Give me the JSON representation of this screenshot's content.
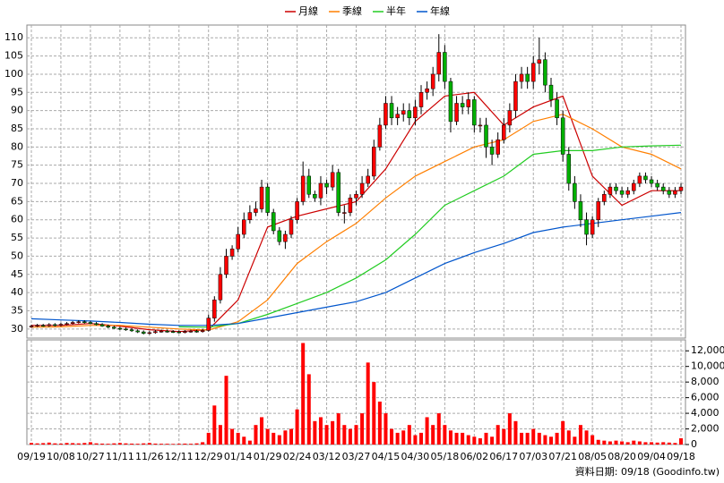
{
  "chart_data": {
    "type": "candlestick",
    "footer": "資料日期: 09/18  (Goodinfo.tw)",
    "categories": [
      "09/19",
      null,
      null,
      null,
      null,
      "10/08",
      null,
      null,
      null,
      null,
      "10/27",
      null,
      null,
      null,
      null,
      "11/11",
      null,
      null,
      null,
      null,
      "11/26",
      null,
      null,
      null,
      null,
      "12/11",
      null,
      null,
      null,
      null,
      "12/29",
      null,
      null,
      null,
      null,
      "01/14",
      null,
      null,
      null,
      null,
      "01/29",
      null,
      null,
      null,
      null,
      "02/24",
      null,
      null,
      null,
      null,
      "03/12",
      null,
      null,
      null,
      null,
      "03/27",
      null,
      null,
      null,
      null,
      "04/15",
      null,
      null,
      null,
      null,
      "04/30",
      null,
      null,
      null,
      null,
      "05/18",
      null,
      null,
      null,
      null,
      "06/02",
      null,
      null,
      null,
      null,
      "06/17",
      null,
      null,
      null,
      null,
      "07/03",
      null,
      null,
      null,
      null,
      "07/21",
      null,
      null,
      null,
      null,
      "08/05",
      null,
      null,
      null,
      null,
      "08/20",
      null,
      null,
      null,
      null,
      "09/04",
      null,
      null,
      null,
      null,
      "09/18"
    ],
    "candles": {
      "up_color": "#ff0000",
      "down_color": "#00b000",
      "open": [
        30.6,
        30.8,
        31,
        30.9,
        31.2,
        31,
        31.3,
        31.5,
        31.8,
        32,
        31.8,
        31.5,
        31.2,
        30.8,
        30.5,
        30.2,
        30,
        29.8,
        29.5,
        29.2,
        28.8,
        29,
        29.3,
        29.4,
        29.3,
        29.2,
        29.1,
        29.3,
        29.4,
        29.3,
        29.6,
        33,
        38,
        45,
        50,
        52,
        56,
        60,
        62,
        63,
        69,
        62,
        57,
        54,
        56,
        60,
        65,
        72,
        67,
        66,
        70,
        69,
        73,
        62,
        62,
        66,
        67,
        70,
        72,
        80,
        86,
        92,
        88,
        89,
        90,
        88,
        91,
        95,
        96,
        100,
        106,
        98,
        87,
        92,
        91,
        93,
        86,
        86,
        80,
        78,
        82,
        86,
        90,
        98,
        100,
        98,
        103,
        104,
        97,
        93,
        88,
        78,
        70,
        65,
        60,
        56,
        60,
        65,
        67,
        69,
        68,
        67,
        68,
        70,
        72,
        71,
        70,
        69,
        68,
        67,
        68
      ],
      "high": [
        31.2,
        31.4,
        31.4,
        31.6,
        31.6,
        31.7,
        31.9,
        32.2,
        32.4,
        32.4,
        32.2,
        31.9,
        31.6,
        31.2,
        30.9,
        30.6,
        30.4,
        30.2,
        29.9,
        29.6,
        29.4,
        29.7,
        29.8,
        29.8,
        29.7,
        29.6,
        29.7,
        29.8,
        29.8,
        30,
        34,
        39,
        47,
        52,
        53,
        58,
        62,
        64,
        65,
        71,
        70,
        63,
        58,
        57,
        61,
        66,
        76,
        74,
        68,
        72,
        71,
        75,
        74,
        64,
        67,
        68,
        72,
        74,
        82,
        88,
        94,
        94,
        91,
        92,
        92,
        93,
        97,
        98,
        102,
        111,
        108,
        99,
        94,
        94,
        95,
        94,
        88,
        88,
        82,
        84,
        88,
        92,
        100,
        102,
        102,
        105,
        110,
        106,
        99,
        95,
        90,
        80,
        72,
        67,
        62,
        61,
        66,
        68,
        70,
        70,
        69,
        69,
        71,
        73,
        73,
        72,
        71,
        70,
        69,
        69,
        70
      ],
      "low": [
        30.3,
        30.5,
        30.6,
        30.6,
        30.7,
        30.7,
        31,
        31.2,
        31.5,
        31.5,
        31.3,
        31,
        30.6,
        30.2,
        30,
        29.7,
        29.5,
        29.2,
        28.9,
        28.5,
        28.5,
        28.7,
        29,
        29,
        28.9,
        28.8,
        28.8,
        29,
        29,
        29,
        29.3,
        32,
        37,
        44,
        49,
        51,
        55,
        59,
        61,
        62,
        61,
        56,
        53,
        52,
        55,
        59,
        64,
        66,
        65,
        64,
        67,
        68,
        61,
        59,
        61,
        64,
        66,
        69,
        71,
        79,
        85,
        86,
        86,
        87,
        86,
        86,
        89,
        93,
        94,
        98,
        96,
        84,
        86,
        89,
        89,
        84,
        84,
        77,
        75,
        77,
        81,
        84,
        88,
        96,
        96,
        96,
        100,
        95,
        91,
        86,
        76,
        68,
        63,
        58,
        53,
        55,
        58,
        64,
        66,
        67,
        66,
        66,
        67,
        69,
        70,
        69,
        68,
        67,
        66,
        66,
        67
      ],
      "close": [
        30.8,
        31,
        30.9,
        31.2,
        31,
        31.3,
        31.5,
        31.8,
        32,
        31.8,
        31.5,
        31.2,
        30.8,
        30.5,
        30.2,
        30,
        29.8,
        29.5,
        29.2,
        28.8,
        29,
        29.3,
        29.4,
        29.3,
        29.2,
        29.1,
        29.3,
        29.4,
        29.3,
        29.6,
        33,
        38,
        45,
        50,
        52,
        56,
        60,
        62,
        63,
        69,
        62,
        57,
        54,
        56,
        60,
        65,
        72,
        67,
        66,
        70,
        69,
        73,
        62,
        62,
        66,
        67,
        70,
        72,
        80,
        86,
        92,
        88,
        89,
        90,
        88,
        91,
        95,
        96,
        100,
        106,
        98,
        87,
        92,
        91,
        93,
        86,
        86,
        80,
        78,
        82,
        86,
        90,
        98,
        100,
        98,
        103,
        104,
        97,
        93,
        88,
        78,
        70,
        65,
        60,
        56,
        60,
        65,
        67,
        69,
        68,
        67,
        68,
        70,
        72,
        71,
        70,
        69,
        68,
        67,
        68,
        69
      ]
    },
    "series": [
      {
        "name": "月線",
        "color": "#cc0000",
        "x": [
          0,
          5,
          10,
          15,
          20,
          25,
          30,
          35,
          40,
          45,
          50,
          55,
          60,
          65,
          70,
          75,
          80,
          85,
          90,
          95,
          100,
          105,
          110
        ],
        "values": [
          31,
          31,
          31.5,
          30.8,
          29.8,
          29.3,
          29.8,
          38,
          58,
          61,
          63,
          65,
          74,
          87,
          94,
          95,
          86,
          91,
          94,
          72,
          64,
          68,
          68
        ]
      },
      {
        "name": "季線",
        "color": "#ff7f00",
        "x": [
          0,
          5,
          10,
          15,
          20,
          25,
          30,
          35,
          40,
          45,
          50,
          55,
          60,
          65,
          70,
          75,
          80,
          85,
          90,
          95,
          100,
          105,
          110
        ],
        "values": [
          30.5,
          30.6,
          31,
          31,
          30.5,
          30,
          29.7,
          32,
          38,
          48,
          54,
          59,
          66,
          72,
          76,
          80,
          82,
          87,
          89,
          85,
          80,
          78,
          74
        ]
      },
      {
        "name": "半年",
        "color": "#22cc22",
        "x": [
          25,
          30,
          35,
          40,
          45,
          50,
          55,
          60,
          65,
          70,
          75,
          80,
          85,
          90,
          95,
          100,
          105,
          110
        ],
        "values": [
          30.6,
          30.5,
          31.5,
          34,
          37,
          40,
          44,
          49,
          56,
          64,
          68,
          72,
          78,
          79,
          79,
          80,
          80.3,
          80.5
        ]
      },
      {
        "name": "年線",
        "color": "#0055cc",
        "x": [
          0,
          5,
          10,
          15,
          20,
          25,
          30,
          35,
          40,
          45,
          50,
          55,
          60,
          65,
          70,
          75,
          80,
          85,
          90,
          95,
          100,
          105,
          110
        ],
        "values": [
          32.8,
          32.5,
          32.2,
          31.8,
          31.3,
          31,
          31,
          31.5,
          33,
          34.5,
          36,
          37.5,
          40,
          44,
          48,
          51,
          53.5,
          56.5,
          58,
          59,
          60,
          61,
          62
        ]
      }
    ],
    "volume": {
      "color": "#ff0000",
      "values": [
        200,
        150,
        180,
        250,
        150,
        120,
        200,
        180,
        150,
        200,
        300,
        150,
        120,
        100,
        150,
        200,
        150,
        120,
        100,
        150,
        200,
        120,
        100,
        100,
        80,
        100,
        120,
        100,
        150,
        300,
        1500,
        5000,
        2500,
        8800,
        2000,
        1500,
        1000,
        500,
        2500,
        3500,
        2000,
        1500,
        1200,
        1800,
        2000,
        4500,
        13000,
        9000,
        3000,
        3500,
        2500,
        3000,
        4000,
        2500,
        2000,
        2500,
        4000,
        10500,
        8000,
        5500,
        4000,
        2000,
        1500,
        1800,
        2500,
        1200,
        1500,
        3500,
        2500,
        4000,
        2500,
        1800,
        1500,
        1500,
        1200,
        1000,
        800,
        1500,
        1000,
        2500,
        2000,
        4000,
        3000,
        1500,
        1500,
        2000,
        1500,
        1200,
        1000,
        1500,
        3000,
        1800,
        1000,
        2500,
        1800,
        1200,
        600,
        500,
        400,
        500,
        400,
        300,
        500,
        400,
        300,
        300,
        250,
        300,
        250,
        200,
        800
      ]
    },
    "ylim": [
      27.5,
      113.5
    ],
    "yticks": [
      30,
      35,
      40,
      45,
      50,
      55,
      60,
      65,
      70,
      75,
      80,
      85,
      90,
      95,
      100,
      105,
      110
    ],
    "y2lim": [
      0,
      13400
    ],
    "y2ticks": [
      0,
      {
        "value": 2000,
        "label": "2,000"
      },
      {
        "value": 4000,
        "label": "4,000"
      },
      {
        "value": 6000,
        "label": "6,000"
      },
      {
        "value": 8000,
        "label": "8,000"
      },
      {
        "value": 10000,
        "label": "10,000"
      },
      {
        "value": 12000,
        "label": "12,000"
      }
    ],
    "grid": true
  }
}
